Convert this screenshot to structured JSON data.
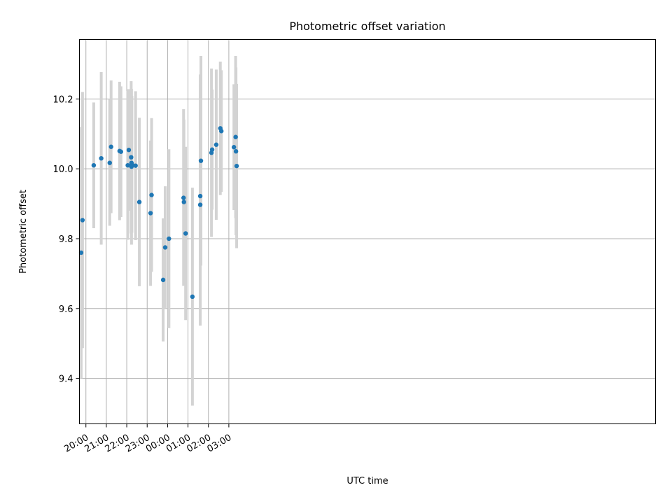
{
  "chart_data": {
    "type": "scatter",
    "title": "Photometric offset variation",
    "xlabel": "UTC time",
    "ylabel": "Photometric offset",
    "x_axis_kind": "time",
    "x_ticks": [
      "20:00",
      "21:00",
      "22:00",
      "23:00",
      "00:00",
      "01:00",
      "02:00",
      "03:00"
    ],
    "y_ticks": [
      "9.4",
      "9.6",
      "9.8",
      "10.0",
      "10.2"
    ],
    "xlim": [
      "19:41",
      "23:54 +1d"
    ],
    "ylim": [
      9.27,
      10.37
    ],
    "grid": true,
    "series": [
      {
        "marker_color": "#1f77b4",
        "errorbar_color": "#d3d3d3",
        "points": [
          {
            "x": "19:46",
            "y": 9.76,
            "ylow": 9.4,
            "yhigh": 10.12
          },
          {
            "x": "19:50",
            "y": 9.853,
            "ylow": 9.487,
            "yhigh": 10.22
          },
          {
            "x": "20:23",
            "y": 10.01,
            "ylow": 9.83,
            "yhigh": 10.19
          },
          {
            "x": "20:45",
            "y": 10.03,
            "ylow": 9.783,
            "yhigh": 10.277
          },
          {
            "x": "21:10",
            "y": 10.017,
            "ylow": 9.837,
            "yhigh": 10.2
          },
          {
            "x": "21:14",
            "y": 10.063,
            "ylow": 9.873,
            "yhigh": 10.253
          },
          {
            "x": "21:39",
            "y": 10.051,
            "ylow": 9.853,
            "yhigh": 10.249
          },
          {
            "x": "21:43",
            "y": 10.049,
            "ylow": 9.862,
            "yhigh": 10.236
          },
          {
            "x": "22:03",
            "y": 10.01,
            "ylow": 9.797,
            "yhigh": 10.223
          },
          {
            "x": "22:06",
            "y": 10.054,
            "ylow": 9.88,
            "yhigh": 10.228
          },
          {
            "x": "22:13",
            "y": 10.033,
            "ylow": 9.815,
            "yhigh": 10.251
          },
          {
            "x": "22:14",
            "y": 10.006,
            "ylow": 9.783,
            "yhigh": 10.229
          },
          {
            "x": "22:14",
            "y": 10.017,
            "ylow": 9.83,
            "yhigh": 10.204
          },
          {
            "x": "22:15",
            "y": 10.013,
            "ylow": 9.817,
            "yhigh": 10.209
          },
          {
            "x": "22:26",
            "y": 10.009,
            "ylow": 9.796,
            "yhigh": 10.222
          },
          {
            "x": "22:37",
            "y": 9.905,
            "ylow": 9.664,
            "yhigh": 10.146
          },
          {
            "x": "23:10",
            "y": 9.873,
            "ylow": 9.665,
            "yhigh": 10.081
          },
          {
            "x": "23:13",
            "y": 9.925,
            "ylow": 9.705,
            "yhigh": 10.145
          },
          {
            "x": "23:47",
            "y": 9.682,
            "ylow": 9.506,
            "yhigh": 9.858
          },
          {
            "x": "23:53",
            "y": 9.775,
            "ylow": 9.6,
            "yhigh": 9.95
          },
          {
            "x": "00:04",
            "y": 9.8,
            "ylow": 9.544,
            "yhigh": 10.056
          },
          {
            "x": "00:47",
            "y": 9.917,
            "ylow": 9.665,
            "yhigh": 10.171
          },
          {
            "x": "00:48",
            "y": 9.905,
            "ylow": 9.669,
            "yhigh": 10.141
          },
          {
            "x": "00:53",
            "y": 9.815,
            "ylow": 9.567,
            "yhigh": 10.063
          },
          {
            "x": "01:13",
            "y": 9.634,
            "ylow": 9.322,
            "yhigh": 9.946
          },
          {
            "x": "01:36",
            "y": 9.922,
            "ylow": 9.574,
            "yhigh": 10.27
          },
          {
            "x": "01:36",
            "y": 9.897,
            "ylow": 9.551,
            "yhigh": 10.243
          },
          {
            "x": "01:38",
            "y": 10.023,
            "ylow": 9.723,
            "yhigh": 10.323
          },
          {
            "x": "02:09",
            "y": 10.046,
            "ylow": 9.805,
            "yhigh": 10.287
          },
          {
            "x": "02:11",
            "y": 10.055,
            "ylow": 9.883,
            "yhigh": 10.227
          },
          {
            "x": "02:23",
            "y": 10.069,
            "ylow": 9.854,
            "yhigh": 10.284
          },
          {
            "x": "02:35",
            "y": 10.116,
            "ylow": 9.925,
            "yhigh": 10.307
          },
          {
            "x": "02:38",
            "y": 10.108,
            "ylow": 9.934,
            "yhigh": 10.282
          },
          {
            "x": "03:15",
            "y": 10.062,
            "ylow": 9.882,
            "yhigh": 10.242
          },
          {
            "x": "03:20",
            "y": 10.091,
            "ylow": 9.859,
            "yhigh": 10.323
          },
          {
            "x": "03:21",
            "y": 10.05,
            "ylow": 9.81,
            "yhigh": 10.29
          },
          {
            "x": "03:23",
            "y": 10.008,
            "ylow": 9.773,
            "yhigh": 10.243
          }
        ]
      }
    ]
  }
}
